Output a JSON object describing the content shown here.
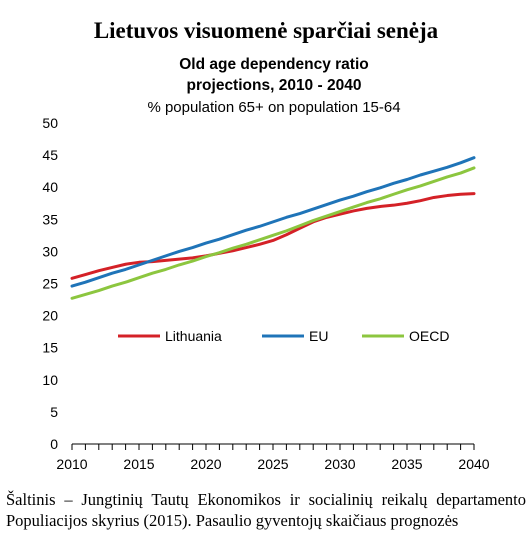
{
  "page": {
    "title": "Lietuvos visuomenė sparčiai senėja",
    "source": "Šaltinis – Jungtinių Tautų Ekonomikos ir socialinių reikalų departamento Populiacijos skyrius (2015). Pasaulio gyventojų skaičiaus prognozės"
  },
  "chart_data": {
    "type": "line",
    "title": "Old age dependency ratio",
    "subtitle": "projections, 2010 - 2040",
    "unit_label": "% population 65+ on population 15-64",
    "xlim": [
      2010,
      2040
    ],
    "ylim": [
      0,
      50
    ],
    "x_ticks": [
      "2010",
      "2015",
      "2020",
      "2025",
      "2030",
      "2035",
      "2040"
    ],
    "y_ticks": [
      "0",
      "5",
      "10",
      "15",
      "20",
      "25",
      "30",
      "35",
      "40",
      "45",
      "50"
    ],
    "grid": false,
    "legend_position": "center",
    "x": [
      2010,
      2011,
      2012,
      2013,
      2014,
      2015,
      2016,
      2017,
      2018,
      2019,
      2020,
      2021,
      2022,
      2023,
      2024,
      2025,
      2026,
      2027,
      2028,
      2029,
      2030,
      2031,
      2032,
      2033,
      2034,
      2035,
      2036,
      2037,
      2038,
      2039,
      2040
    ],
    "series": [
      {
        "name": "Lithuania",
        "color": "#d42127",
        "values": [
          25.8,
          26.4,
          27.0,
          27.5,
          28.0,
          28.3,
          28.4,
          28.6,
          28.8,
          29.0,
          29.3,
          29.7,
          30.1,
          30.6,
          31.1,
          31.7,
          32.6,
          33.6,
          34.6,
          35.3,
          35.8,
          36.3,
          36.7,
          37.0,
          37.2,
          37.5,
          37.9,
          38.4,
          38.7,
          38.9,
          39.0
        ]
      },
      {
        "name": "EU",
        "color": "#1f74b8",
        "values": [
          24.6,
          25.2,
          25.9,
          26.6,
          27.2,
          27.9,
          28.6,
          29.3,
          30.0,
          30.6,
          31.3,
          31.9,
          32.6,
          33.3,
          33.9,
          34.6,
          35.3,
          35.9,
          36.6,
          37.3,
          38.0,
          38.6,
          39.3,
          39.9,
          40.6,
          41.2,
          41.9,
          42.5,
          43.1,
          43.8,
          44.6
        ]
      },
      {
        "name": "OECD",
        "color": "#8cc63f",
        "values": [
          22.7,
          23.3,
          23.9,
          24.6,
          25.2,
          25.9,
          26.6,
          27.2,
          27.9,
          28.5,
          29.2,
          29.8,
          30.5,
          31.1,
          31.8,
          32.5,
          33.2,
          34.0,
          34.8,
          35.5,
          36.2,
          36.9,
          37.6,
          38.2,
          38.9,
          39.6,
          40.2,
          40.9,
          41.6,
          42.2,
          43.0
        ]
      }
    ]
  }
}
